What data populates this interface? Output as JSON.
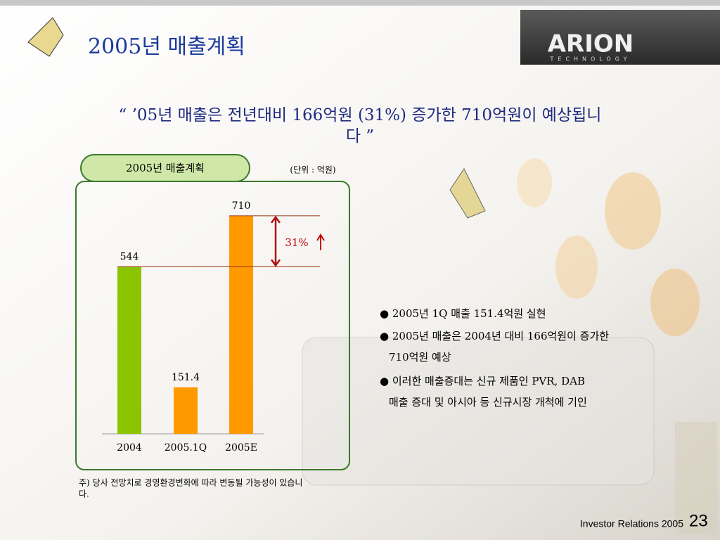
{
  "slide": {
    "title": "2005년 매출계획",
    "quote_line1": "“ ’05년 매출은 전년대비 166억원 (31%) 증가한 710억원이 예상됩니",
    "quote_line2": "다 ”",
    "logo": "ARION",
    "logo_sub": "TECHNOLOGY",
    "bullets": [
      "2005년 1Q 매출 151.4억원 실현",
      "2005년 매출은 2004년 대비 166억원이 증가한",
      "710억원 예상",
      "이러한 매출증대는 신규 제품인 PVR, DAB",
      "매출 증대 및 아시아 등 신규시장 개척에 기인"
    ],
    "footnote_line1": "주) 당사 전망치로 경영환경변화에 따라 변동될 가능성이 있습니",
    "footnote_line2": "다.",
    "footer": "Investor Relations 2005",
    "page": "23"
  },
  "chart_data": {
    "type": "bar",
    "title": "2005년 매출계획",
    "unit_note": "(단위 : 억원)",
    "annotation": "31%",
    "categories": [
      "2004",
      "2005.1Q",
      "2005E"
    ],
    "values": [
      544,
      151.4,
      710
    ],
    "colors": [
      "#8cc400",
      "#ff9900",
      "#ff9900"
    ],
    "ylim": [
      0,
      760
    ]
  }
}
